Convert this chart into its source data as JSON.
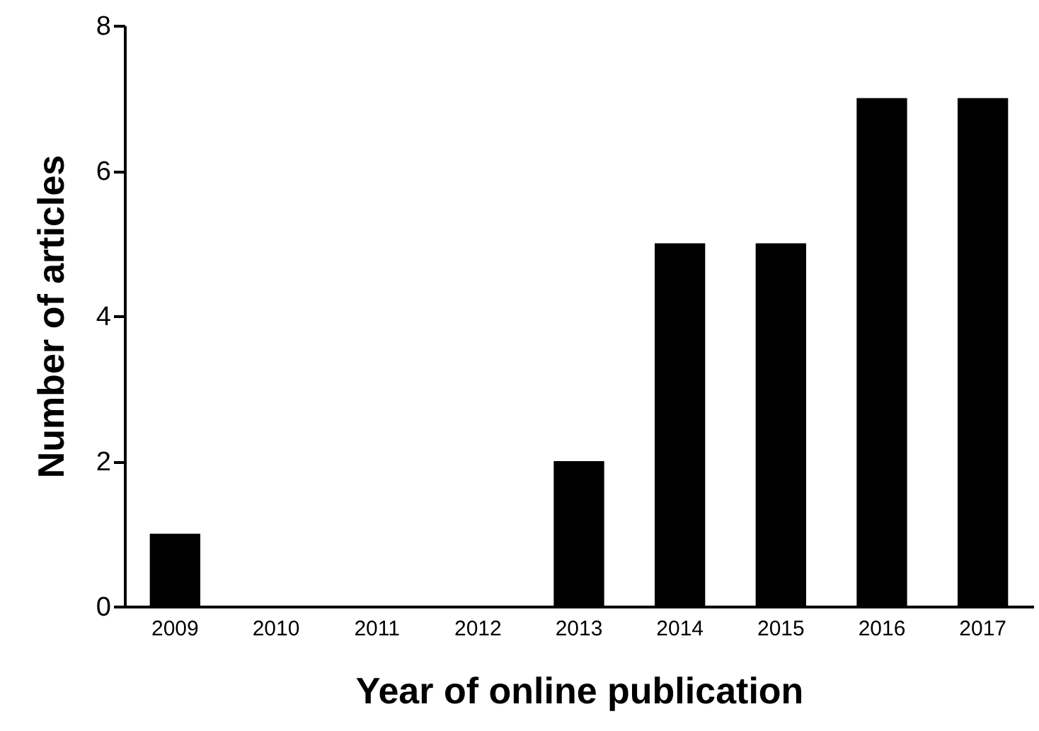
{
  "chart_data": {
    "type": "bar",
    "xlabel": "Year of online publication",
    "ylabel": "Number of articles",
    "categories": [
      "2009",
      "2010",
      "2011",
      "2012",
      "2013",
      "2014",
      "2015",
      "2016",
      "2017"
    ],
    "values": [
      1,
      0,
      0,
      0,
      2,
      5,
      5,
      7,
      7
    ],
    "color": "#000000",
    "ylim": [
      0,
      8
    ],
    "yticks": [
      0,
      2,
      4,
      6,
      8
    ],
    "grid": false
  }
}
